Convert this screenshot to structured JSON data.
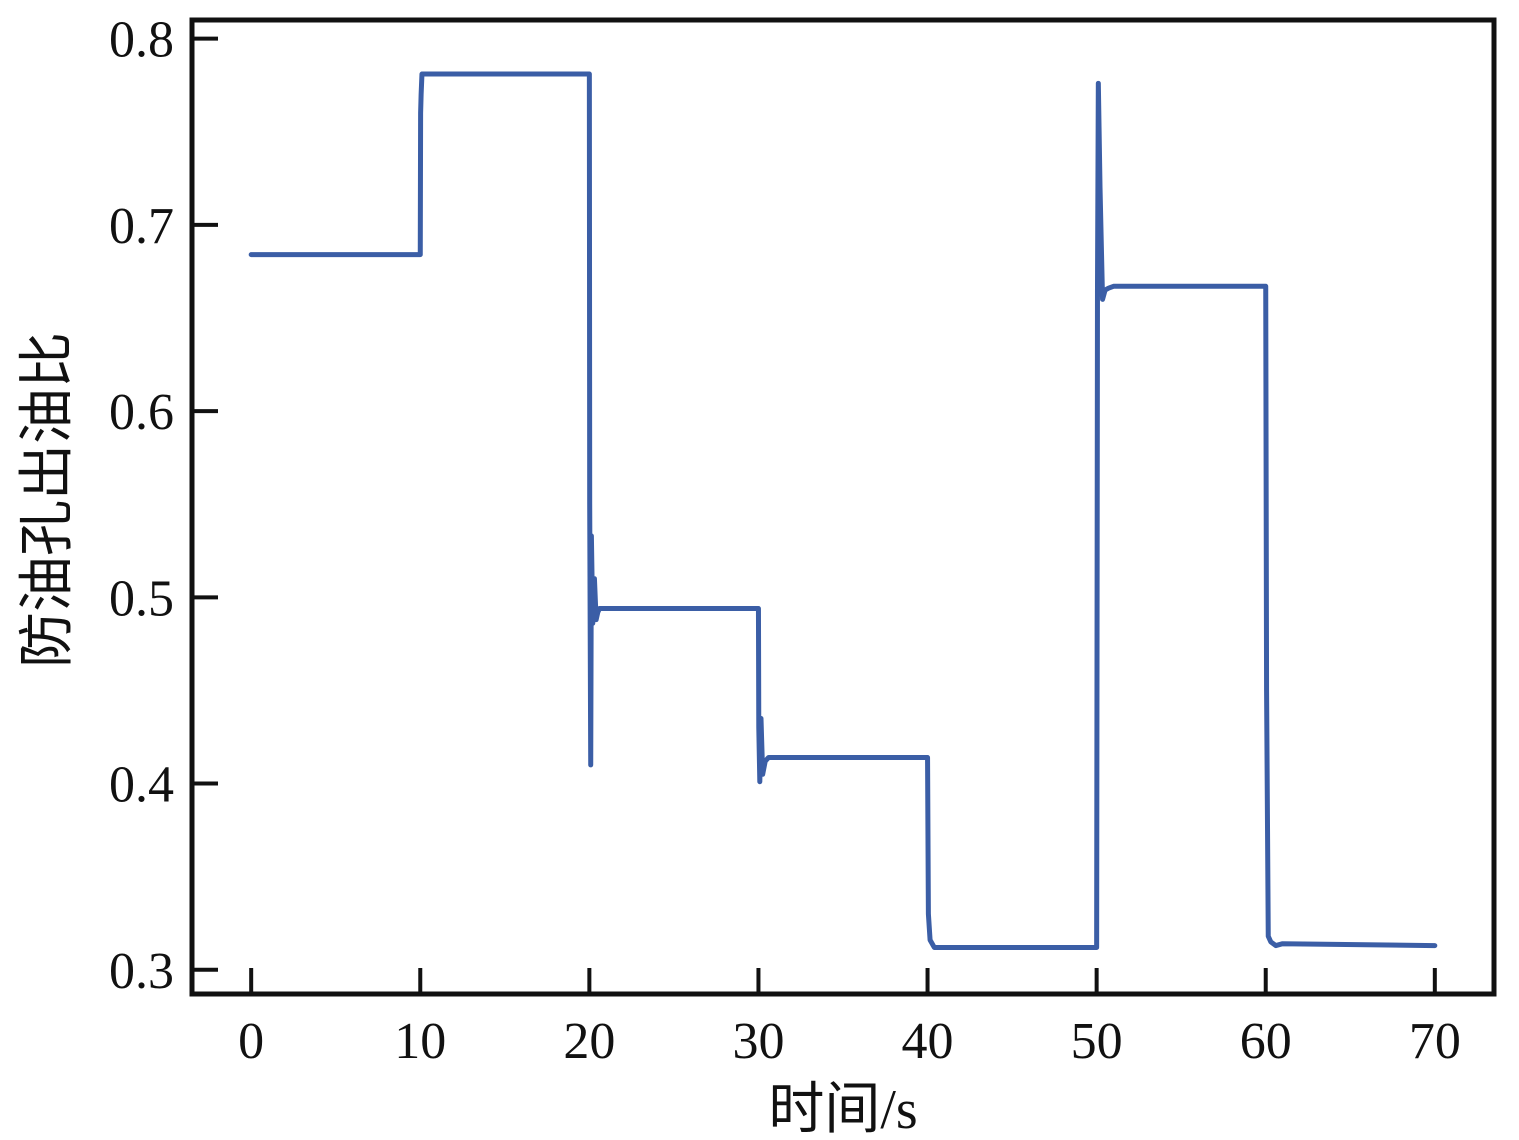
{
  "chart_data": {
    "type": "line",
    "xlabel": "时间/s",
    "ylabel": "防油孔出油比",
    "xlim": [
      -3.5,
      73.5
    ],
    "ylim": [
      0.287,
      0.81
    ],
    "x_ticks": [
      0,
      10,
      20,
      30,
      40,
      50,
      60,
      70
    ],
    "x_tick_labels": [
      "0",
      "10",
      "20",
      "30",
      "40",
      "50",
      "60",
      "70"
    ],
    "y_ticks": [
      0.3,
      0.4,
      0.5,
      0.6,
      0.7,
      0.8
    ],
    "y_tick_labels": [
      "0.3",
      "0.4",
      "0.5",
      "0.6",
      "0.7",
      "0.8"
    ],
    "grid": false,
    "colors": {
      "line": "#3b5ea6",
      "axis": "#111111"
    },
    "series": [
      {
        "x": [
          0,
          10,
          10.02,
          10.05,
          10.1,
          20,
          20.02,
          20.08,
          20.12,
          20.2,
          20.3,
          20.4,
          20.5,
          20.6,
          20.8,
          30,
          30.02,
          30.08,
          30.15,
          30.25,
          30.4,
          30.6,
          40,
          40.05,
          40.15,
          40.4,
          41,
          50,
          50.05,
          50.1,
          50.2,
          50.35,
          50.5,
          50.7,
          51,
          60,
          60.05,
          60.15,
          60.3,
          60.6,
          61,
          70
        ],
        "y": [
          0.684,
          0.684,
          0.76,
          0.77,
          0.781,
          0.781,
          0.55,
          0.41,
          0.533,
          0.486,
          0.51,
          0.488,
          0.492,
          0.494,
          0.494,
          0.494,
          0.43,
          0.401,
          0.435,
          0.405,
          0.412,
          0.414,
          0.414,
          0.33,
          0.316,
          0.312,
          0.312,
          0.312,
          0.665,
          0.776,
          0.72,
          0.66,
          0.665,
          0.666,
          0.667,
          0.667,
          0.45,
          0.318,
          0.315,
          0.313,
          0.314,
          0.313
        ]
      }
    ]
  }
}
